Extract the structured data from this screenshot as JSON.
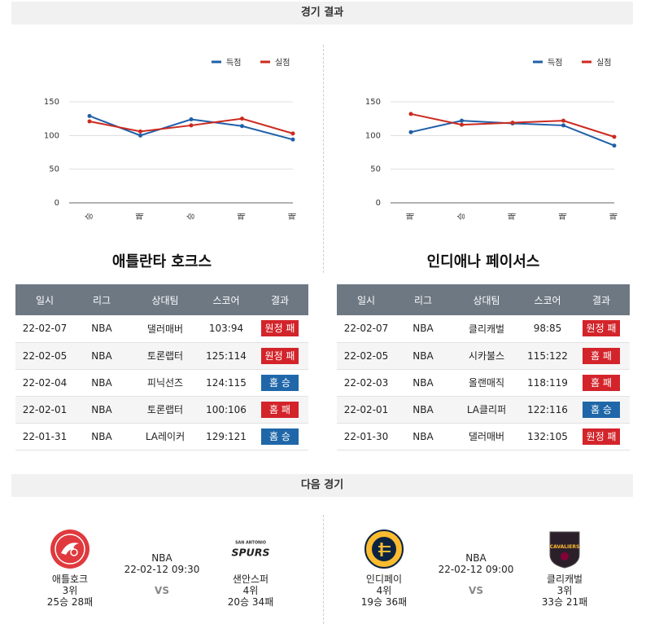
{
  "sections": {
    "results_title": "경기 결과",
    "next_title": "다음 경기"
  },
  "colors": {
    "scored": "#1f5fa8",
    "conceded": "#cc2a1f",
    "win_badge": "#1f67a8",
    "loss_badge": "#d3242b",
    "header": "#6d7883"
  },
  "legend": {
    "scored": "득점",
    "conceded": "실점"
  },
  "chart_data": [
    {
      "type": "line",
      "categories": [
        "승",
        "패",
        "승",
        "패",
        "패"
      ],
      "series": [
        {
          "name": "득점",
          "values": [
            129,
            100,
            124,
            114,
            94
          ]
        },
        {
          "name": "실점",
          "values": [
            121,
            106,
            115,
            125,
            103
          ]
        }
      ],
      "yticks": [
        0,
        50,
        100,
        150
      ],
      "ylim": [
        0,
        150
      ],
      "grid": true,
      "legend_position": "top-right"
    },
    {
      "type": "line",
      "categories": [
        "패",
        "승",
        "패",
        "패",
        "패"
      ],
      "series": [
        {
          "name": "득점",
          "values": [
            105,
            122,
            118,
            115,
            85
          ]
        },
        {
          "name": "실점",
          "values": [
            132,
            116,
            119,
            122,
            98
          ]
        }
      ],
      "yticks": [
        0,
        50,
        100,
        150
      ],
      "ylim": [
        0,
        150
      ],
      "grid": true,
      "legend_position": "top-right"
    }
  ],
  "teams": {
    "left": {
      "title": "애틀란타 호크스",
      "headers": [
        "일시",
        "리그",
        "상대팀",
        "스코어",
        "결과"
      ],
      "rows": [
        {
          "date": "22-02-07",
          "league": "NBA",
          "opponent": "댈러매버",
          "score": "103:94",
          "result": "원정 패",
          "type": "loss"
        },
        {
          "date": "22-02-05",
          "league": "NBA",
          "opponent": "토론랩터",
          "score": "125:114",
          "result": "원정 패",
          "type": "loss"
        },
        {
          "date": "22-02-04",
          "league": "NBA",
          "opponent": "피닉선즈",
          "score": "124:115",
          "result": "홈 승",
          "type": "win"
        },
        {
          "date": "22-02-01",
          "league": "NBA",
          "opponent": "토론랩터",
          "score": "100:106",
          "result": "홈 패",
          "type": "loss"
        },
        {
          "date": "22-01-31",
          "league": "NBA",
          "opponent": "LA레이커",
          "score": "129:121",
          "result": "홈 승",
          "type": "win"
        }
      ]
    },
    "right": {
      "title": "인디애나 페이서스",
      "headers": [
        "일시",
        "리그",
        "상대팀",
        "스코어",
        "결과"
      ],
      "rows": [
        {
          "date": "22-02-07",
          "league": "NBA",
          "opponent": "클리캐벌",
          "score": "98:85",
          "result": "원정 패",
          "type": "loss"
        },
        {
          "date": "22-02-05",
          "league": "NBA",
          "opponent": "시카불스",
          "score": "115:122",
          "result": "홈 패",
          "type": "loss"
        },
        {
          "date": "22-02-03",
          "league": "NBA",
          "opponent": "올랜매직",
          "score": "118:119",
          "result": "홈 패",
          "type": "loss"
        },
        {
          "date": "22-02-01",
          "league": "NBA",
          "opponent": "LA클리퍼",
          "score": "122:116",
          "result": "홈 승",
          "type": "win"
        },
        {
          "date": "22-01-30",
          "league": "NBA",
          "opponent": "댈러매버",
          "score": "132:105",
          "result": "원정 패",
          "type": "loss"
        }
      ]
    }
  },
  "next_games": [
    {
      "league": "NBA",
      "datetime": "22-02-12 09:30",
      "vs": "VS",
      "home": {
        "name": "애틀호크",
        "rank": "3위",
        "record": "25승 28패",
        "logo": "hawks-logo"
      },
      "away": {
        "name": "샌안스퍼",
        "rank": "4위",
        "record": "20승 34패",
        "logo": "spurs-logo",
        "logo_text_top": "SAN ANTONIO",
        "logo_text": "SPURS"
      }
    },
    {
      "league": "NBA",
      "datetime": "22-02-12 09:00",
      "vs": "VS",
      "home": {
        "name": "인디페이",
        "rank": "4위",
        "record": "19승 36패",
        "logo": "pacers-logo"
      },
      "away": {
        "name": "클리캐벌",
        "rank": "3위",
        "record": "33승 21패",
        "logo": "cavaliers-logo",
        "logo_text": "CAVALIERS"
      }
    }
  ]
}
